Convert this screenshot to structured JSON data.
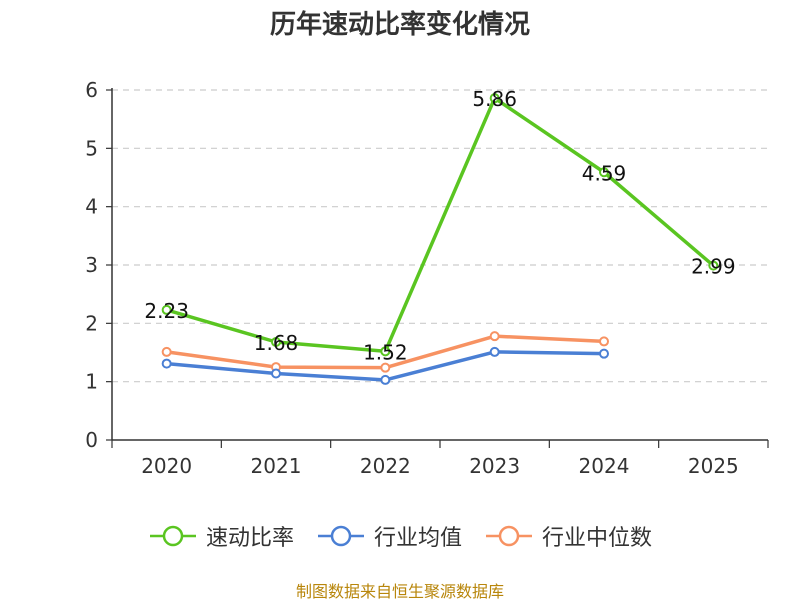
{
  "chart_data": {
    "type": "line",
    "title": "历年速动比率变化情况",
    "categories": [
      "2020",
      "2021",
      "2022",
      "2023",
      "2024",
      "2025"
    ],
    "ylim": [
      0,
      6
    ],
    "yticks": [
      0,
      1,
      2,
      3,
      4,
      5,
      6
    ],
    "grid": true,
    "legend_position": "bottom",
    "series": [
      {
        "name": "速动比率",
        "color": "#5ac521",
        "values": [
          2.23,
          1.68,
          1.52,
          5.86,
          4.59,
          2.99
        ],
        "labels": [
          "2.23",
          "1.68",
          "1.52",
          "5.86",
          "4.59",
          "2.99"
        ]
      },
      {
        "name": "行业均值",
        "color": "#4a7fd4",
        "values": [
          1.31,
          1.14,
          1.03,
          1.51,
          1.48,
          null
        ]
      },
      {
        "name": "行业中位数",
        "color": "#f79262",
        "values": [
          1.51,
          1.25,
          1.24,
          1.78,
          1.69,
          null
        ]
      }
    ],
    "source": "制图数据来自恒生聚源数据库"
  }
}
